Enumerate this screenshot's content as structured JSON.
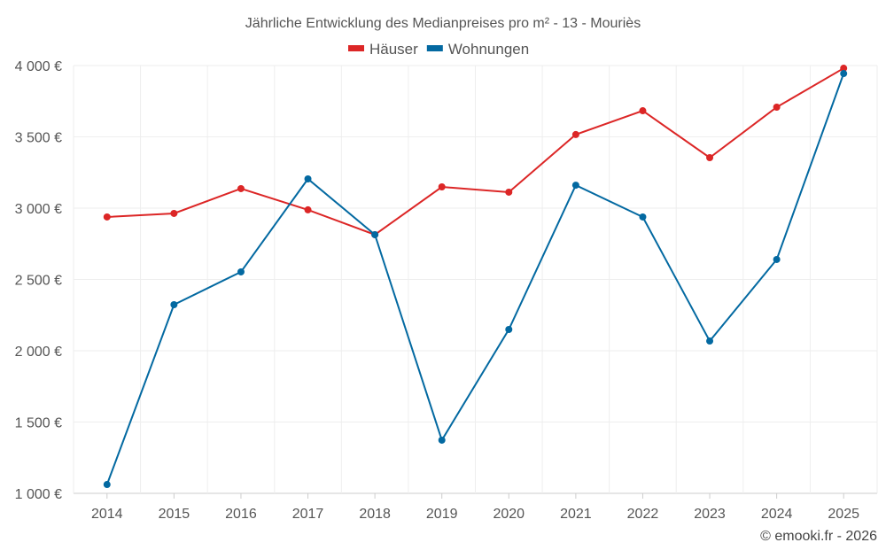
{
  "chart_data": {
    "type": "line",
    "title": "Jährliche Entwicklung des Medianpreises pro m² - 13 - Mouriès",
    "x": [
      "2014",
      "2015",
      "2016",
      "2017",
      "2018",
      "2019",
      "2020",
      "2021",
      "2022",
      "2023",
      "2024",
      "2025"
    ],
    "series": [
      {
        "name": "Häuser",
        "color": "#dc2626",
        "values": [
          2938,
          2963,
          3137,
          2988,
          2814,
          3149,
          3112,
          3516,
          3683,
          3354,
          3708,
          3981
        ]
      },
      {
        "name": "Wohnungen",
        "color": "#0369a1",
        "values": [
          1062,
          2323,
          2553,
          3205,
          2814,
          1373,
          2149,
          3161,
          2938,
          2068,
          2640,
          3944
        ]
      }
    ],
    "yticks": [
      1000,
      1500,
      2000,
      2500,
      3000,
      3500,
      4000
    ],
    "ytick_labels": [
      "1 000 €",
      "1 500 €",
      "2 000 €",
      "2 500 €",
      "3 000 €",
      "3 500 €",
      "4 000 €"
    ],
    "ylim": [
      1000,
      4000
    ],
    "grid": true,
    "legend_position": "top-center"
  },
  "credit": "© emooki.fr - 2026"
}
